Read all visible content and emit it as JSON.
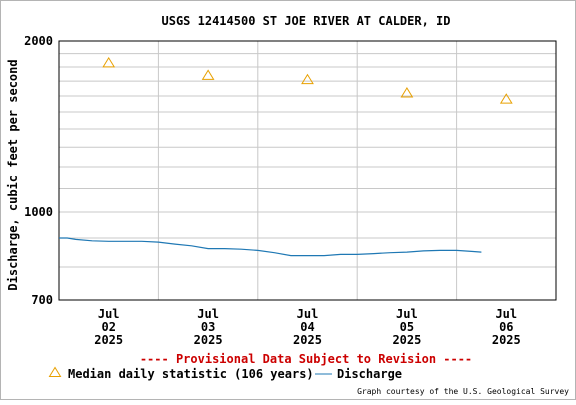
{
  "chart_data": {
    "type": "line",
    "title": "USGS 12414500 ST JOE RIVER AT CALDER, ID",
    "ylabel": "Discharge, cubic feet per second",
    "xlabel": "",
    "y_scale": "log",
    "ylim": [
      700,
      2000
    ],
    "y_ticks": [
      700,
      1000,
      2000
    ],
    "xlim": [
      "2025-07-01 12:00",
      "2025-07-06 12:00"
    ],
    "x_ticks": [
      {
        "x": "2025-07-02 00:00",
        "label": [
          "Jul",
          "02",
          "2025"
        ]
      },
      {
        "x": "2025-07-03 00:00",
        "label": [
          "Jul",
          "03",
          "2025"
        ]
      },
      {
        "x": "2025-07-04 00:00",
        "label": [
          "Jul",
          "04",
          "2025"
        ]
      },
      {
        "x": "2025-07-05 00:00",
        "label": [
          "Jul",
          "05",
          "2025"
        ]
      },
      {
        "x": "2025-07-06 00:00",
        "label": [
          "Jul",
          "06",
          "2025"
        ]
      }
    ],
    "grid": true,
    "legend_position": "bottom",
    "series": [
      {
        "name": "Median daily statistic (106 years)",
        "kind": "scatter",
        "marker": "triangle",
        "color": "#e8a000",
        "points": [
          {
            "x": "2025-07-02 00:00",
            "y": 1830
          },
          {
            "x": "2025-07-03 00:00",
            "y": 1740
          },
          {
            "x": "2025-07-04 00:00",
            "y": 1710
          },
          {
            "x": "2025-07-05 00:00",
            "y": 1620
          },
          {
            "x": "2025-07-06 00:00",
            "y": 1580
          }
        ]
      },
      {
        "name": "Discharge",
        "kind": "line",
        "color": "#1f78b4",
        "points": [
          {
            "x": "2025-07-01 12:00",
            "y": 900
          },
          {
            "x": "2025-07-01 14:00",
            "y": 900
          },
          {
            "x": "2025-07-01 16:00",
            "y": 895
          },
          {
            "x": "2025-07-01 20:00",
            "y": 890
          },
          {
            "x": "2025-07-02 00:00",
            "y": 888
          },
          {
            "x": "2025-07-02 04:00",
            "y": 888
          },
          {
            "x": "2025-07-02 08:00",
            "y": 888
          },
          {
            "x": "2025-07-02 12:00",
            "y": 885
          },
          {
            "x": "2025-07-02 16:00",
            "y": 878
          },
          {
            "x": "2025-07-02 20:00",
            "y": 872
          },
          {
            "x": "2025-07-03 00:00",
            "y": 862
          },
          {
            "x": "2025-07-03 04:00",
            "y": 862
          },
          {
            "x": "2025-07-03 08:00",
            "y": 860
          },
          {
            "x": "2025-07-03 12:00",
            "y": 856
          },
          {
            "x": "2025-07-03 16:00",
            "y": 848
          },
          {
            "x": "2025-07-03 20:00",
            "y": 838
          },
          {
            "x": "2025-07-04 00:00",
            "y": 838
          },
          {
            "x": "2025-07-04 04:00",
            "y": 838
          },
          {
            "x": "2025-07-04 08:00",
            "y": 842
          },
          {
            "x": "2025-07-04 12:00",
            "y": 842
          },
          {
            "x": "2025-07-04 16:00",
            "y": 845
          },
          {
            "x": "2025-07-04 20:00",
            "y": 848
          },
          {
            "x": "2025-07-05 00:00",
            "y": 850
          },
          {
            "x": "2025-07-05 04:00",
            "y": 854
          },
          {
            "x": "2025-07-05 08:00",
            "y": 856
          },
          {
            "x": "2025-07-05 12:00",
            "y": 856
          },
          {
            "x": "2025-07-05 16:00",
            "y": 852
          },
          {
            "x": "2025-07-05 18:00",
            "y": 850
          }
        ]
      }
    ]
  },
  "notes": {
    "provisional": "---- Provisional Data Subject to Revision ----",
    "credit": "Graph courtesy of the U.S. Geological Survey"
  },
  "colors": {
    "provisional": "#cc0000",
    "grid": "#c8c8c8"
  }
}
